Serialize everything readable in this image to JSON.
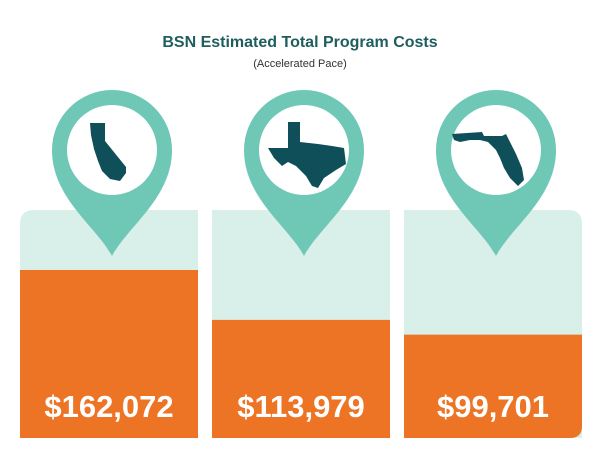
{
  "chart_data": {
    "type": "bar",
    "title": "BSN Estimated Total Program Costs",
    "subtitle": "(Accelerated Pace)",
    "categories": [
      "California",
      "Texas",
      "Florida"
    ],
    "values": [
      162072,
      113979,
      99701
    ],
    "value_labels": [
      "$162,072",
      "$113,979",
      "$99,701"
    ],
    "ylim": [
      0,
      220000
    ],
    "grid": false,
    "legend": "none",
    "colors": {
      "bar": "#ec7424",
      "track": "#d9f0ea",
      "pin": "#6fc8b6",
      "state": "#0e4f5a",
      "title": "#1f5e5e"
    },
    "icons": [
      "california-icon",
      "texas-icon",
      "florida-icon"
    ]
  }
}
